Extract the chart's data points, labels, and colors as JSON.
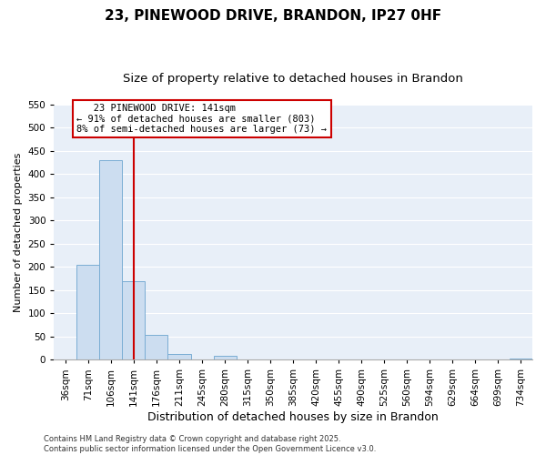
{
  "title": "23, PINEWOOD DRIVE, BRANDON, IP27 0HF",
  "subtitle": "Size of property relative to detached houses in Brandon",
  "xlabel": "Distribution of detached houses by size in Brandon",
  "ylabel": "Number of detached properties",
  "categories": [
    "36sqm",
    "71sqm",
    "106sqm",
    "141sqm",
    "176sqm",
    "211sqm",
    "245sqm",
    "280sqm",
    "315sqm",
    "350sqm",
    "385sqm",
    "420sqm",
    "455sqm",
    "490sqm",
    "525sqm",
    "560sqm",
    "594sqm",
    "629sqm",
    "664sqm",
    "699sqm",
    "734sqm"
  ],
  "values": [
    0,
    205,
    430,
    170,
    53,
    13,
    0,
    8,
    0,
    0,
    0,
    0,
    0,
    0,
    0,
    0,
    0,
    0,
    0,
    0,
    2
  ],
  "bar_color": "#ccddf0",
  "bar_edge_color": "#7aadd4",
  "red_line_index": 3,
  "annotation_line1": "   23 PINEWOOD DRIVE: 141sqm",
  "annotation_line2": "← 91% of detached houses are smaller (803)",
  "annotation_line3": "8% of semi-detached houses are larger (73) →",
  "annotation_box_color": "#ffffff",
  "annotation_box_edge_color": "#cc0000",
  "ylim": [
    0,
    550
  ],
  "yticks": [
    0,
    50,
    100,
    150,
    200,
    250,
    300,
    350,
    400,
    450,
    500,
    550
  ],
  "background_color": "#e8eff8",
  "grid_color": "#ffffff",
  "footer_text": "Contains HM Land Registry data © Crown copyright and database right 2025.\nContains public sector information licensed under the Open Government Licence v3.0.",
  "title_fontsize": 11,
  "subtitle_fontsize": 9.5,
  "xlabel_fontsize": 9,
  "ylabel_fontsize": 8,
  "tick_fontsize": 7.5,
  "footer_fontsize": 6,
  "annotation_fontsize": 7.5
}
